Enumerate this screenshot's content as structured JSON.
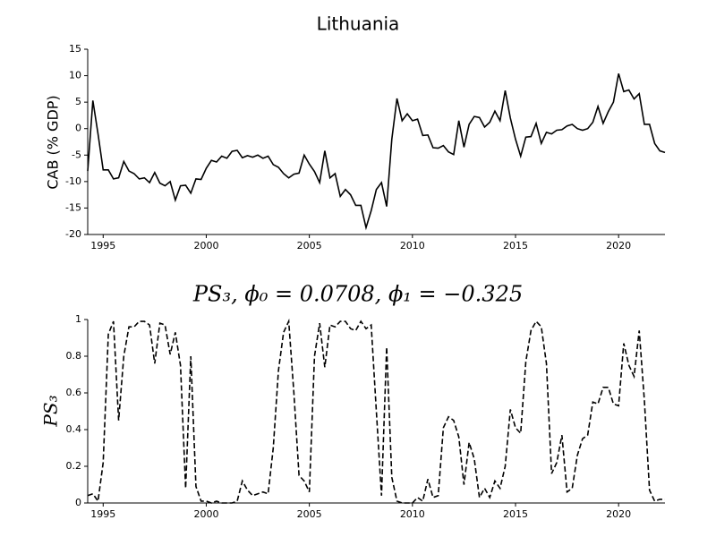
{
  "chart_data": [
    {
      "type": "line",
      "title": "Lithuania",
      "y_label": "CAB (% GDP)",
      "color": "#000000",
      "line_style": "solid",
      "x": [
        1994.25,
        1994.5,
        1994.75,
        1995,
        1995.25,
        1995.5,
        1995.75,
        1996,
        1996.25,
        1996.5,
        1996.75,
        1997,
        1997.25,
        1997.5,
        1997.75,
        1998,
        1998.25,
        1998.5,
        1998.75,
        1999,
        1999.25,
        1999.5,
        1999.75,
        2000,
        2000.25,
        2000.5,
        2000.75,
        2001,
        2001.25,
        2001.5,
        2001.75,
        2002,
        2002.25,
        2002.5,
        2002.75,
        2003,
        2003.25,
        2003.5,
        2003.75,
        2004,
        2004.25,
        2004.5,
        2004.75,
        2005,
        2005.25,
        2005.5,
        2005.75,
        2006,
        2006.25,
        2006.5,
        2006.75,
        2007,
        2007.25,
        2007.5,
        2007.75,
        2008,
        2008.25,
        2008.5,
        2008.75,
        2009,
        2009.25,
        2009.5,
        2009.75,
        2010,
        2010.25,
        2010.5,
        2010.75,
        2011,
        2011.25,
        2011.5,
        2011.75,
        2012,
        2012.25,
        2012.5,
        2012.75,
        2013,
        2013.25,
        2013.5,
        2013.75,
        2014,
        2014.25,
        2014.5,
        2014.75,
        2015,
        2015.25,
        2015.5,
        2015.75,
        2016,
        2016.25,
        2016.5,
        2016.75,
        2017,
        2017.25,
        2017.5,
        2017.75,
        2018,
        2018.25,
        2018.5,
        2018.75,
        2019,
        2019.25,
        2019.5,
        2019.75,
        2020,
        2020.25,
        2020.5,
        2020.75,
        2021,
        2021.25,
        2021.5,
        2021.75,
        2022,
        2022.25
      ],
      "values": [
        -8,
        5.3,
        -1,
        -7.8,
        -7.8,
        -9.5,
        -9.3,
        -6.2,
        -8,
        -8.5,
        -9.5,
        -9.3,
        -10.2,
        -8.3,
        -10.3,
        -10.8,
        -10,
        -13.5,
        -10.8,
        -10.7,
        -12.2,
        -9.5,
        -9.6,
        -7.5,
        -6,
        -6.3,
        -5.2,
        -5.6,
        -4.3,
        -4.1,
        -5.5,
        -5.1,
        -5.4,
        -5,
        -5.6,
        -5.2,
        -6.8,
        -7.3,
        -8.5,
        -9.3,
        -8.6,
        -8.4,
        -5,
        -6.7,
        -8.1,
        -10.2,
        -4.2,
        -9.3,
        -8.5,
        -12.8,
        -11.5,
        -12.5,
        -14.5,
        -14.5,
        -18.7,
        -15.5,
        -11.5,
        -10.2,
        -14.7,
        -2,
        5.7,
        1.5,
        2.8,
        1.5,
        1.8,
        -1.3,
        -1.2,
        -3.6,
        -3.7,
        -3.2,
        -4.4,
        -4.9,
        1.5,
        -3.5,
        0.8,
        2.3,
        2.1,
        0.3,
        1.2,
        3.3,
        1.5,
        7.2,
        2,
        -2,
        -5.2,
        -1.6,
        -1.5,
        1,
        -2.8,
        -0.7,
        -1,
        -0.3,
        -0.2,
        0.5,
        0.8,
        0,
        -0.3,
        0,
        1.2,
        4.2,
        1,
        3.2,
        5,
        10.4,
        7,
        7.3,
        5.6,
        6.6,
        0.8,
        0.8,
        -2.8,
        -4.2,
        -4.5
      ],
      "xlim": [
        1994.25,
        2022.25
      ],
      "xticks": [
        1995,
        2000,
        2005,
        2010,
        2015,
        2020
      ],
      "ylim": [
        -20,
        15
      ],
      "yticks": [
        -20,
        -15,
        -10,
        -5,
        0,
        5,
        10,
        15
      ]
    },
    {
      "type": "line",
      "title": "PS₃, ϕ₀ = 0.0708, ϕ₁ = −0.325",
      "y_label": "PS₃",
      "color": "#000000",
      "line_style": "dashed",
      "x": [
        1994.25,
        1994.5,
        1994.75,
        1995,
        1995.25,
        1995.5,
        1995.75,
        1996,
        1996.25,
        1996.5,
        1996.75,
        1997,
        1997.25,
        1997.5,
        1997.75,
        1998,
        1998.25,
        1998.5,
        1998.75,
        1999,
        1999.25,
        1999.5,
        1999.75,
        2000,
        2000.25,
        2000.5,
        2000.75,
        2001,
        2001.25,
        2001.5,
        2001.75,
        2002,
        2002.25,
        2002.5,
        2002.75,
        2003,
        2003.25,
        2003.5,
        2003.75,
        2004,
        2004.25,
        2004.5,
        2004.75,
        2005,
        2005.25,
        2005.5,
        2005.75,
        2006,
        2006.25,
        2006.5,
        2006.75,
        2007,
        2007.25,
        2007.5,
        2007.75,
        2008,
        2008.25,
        2008.5,
        2008.75,
        2009,
        2009.25,
        2009.5,
        2009.75,
        2010,
        2010.25,
        2010.5,
        2010.75,
        2011,
        2011.25,
        2011.5,
        2011.75,
        2012,
        2012.25,
        2012.5,
        2012.75,
        2013,
        2013.25,
        2013.5,
        2013.75,
        2014,
        2014.25,
        2014.5,
        2014.75,
        2015,
        2015.25,
        2015.5,
        2015.75,
        2016,
        2016.25,
        2016.5,
        2016.75,
        2017,
        2017.25,
        2017.5,
        2017.75,
        2018,
        2018.25,
        2018.5,
        2018.75,
        2019,
        2019.25,
        2019.5,
        2019.75,
        2020,
        2020.25,
        2020.5,
        2020.75,
        2021,
        2021.25,
        2021.5,
        2021.75,
        2022,
        2022.25
      ],
      "values": [
        0.04,
        0.05,
        0.01,
        0.22,
        0.92,
        0.99,
        0.45,
        0.8,
        0.96,
        0.96,
        0.99,
        0.99,
        0.97,
        0.76,
        0.98,
        0.97,
        0.81,
        0.93,
        0.75,
        0.08,
        0.8,
        0.09,
        0.01,
        0.01,
        0,
        0.01,
        0,
        0,
        0,
        0.01,
        0.12,
        0.07,
        0.04,
        0.05,
        0.06,
        0.05,
        0.3,
        0.72,
        0.93,
        0.99,
        0.6,
        0.15,
        0.12,
        0.06,
        0.8,
        0.98,
        0.74,
        0.97,
        0.96,
        0.99,
        0.99,
        0.95,
        0.94,
        0.99,
        0.95,
        0.97,
        0.5,
        0.04,
        0.85,
        0.14,
        0.01,
        0,
        0,
        0,
        0.03,
        0.01,
        0.13,
        0.03,
        0.04,
        0.41,
        0.47,
        0.45,
        0.36,
        0.1,
        0.33,
        0.24,
        0.03,
        0.08,
        0.03,
        0.12,
        0.08,
        0.2,
        0.51,
        0.41,
        0.38,
        0.77,
        0.94,
        0.99,
        0.96,
        0.76,
        0.16,
        0.22,
        0.37,
        0.06,
        0.08,
        0.26,
        0.35,
        0.37,
        0.55,
        0.54,
        0.63,
        0.63,
        0.54,
        0.53,
        0.87,
        0.75,
        0.69,
        0.94,
        0.56,
        0.07,
        0.01,
        0.02,
        0.02
      ],
      "xlim": [
        1994.25,
        2022.25
      ],
      "xticks": [
        1995,
        2000,
        2005,
        2010,
        2015,
        2020
      ],
      "ylim": [
        0,
        1
      ],
      "yticks": [
        0,
        0.2,
        0.4,
        0.6,
        0.8,
        1
      ]
    }
  ]
}
